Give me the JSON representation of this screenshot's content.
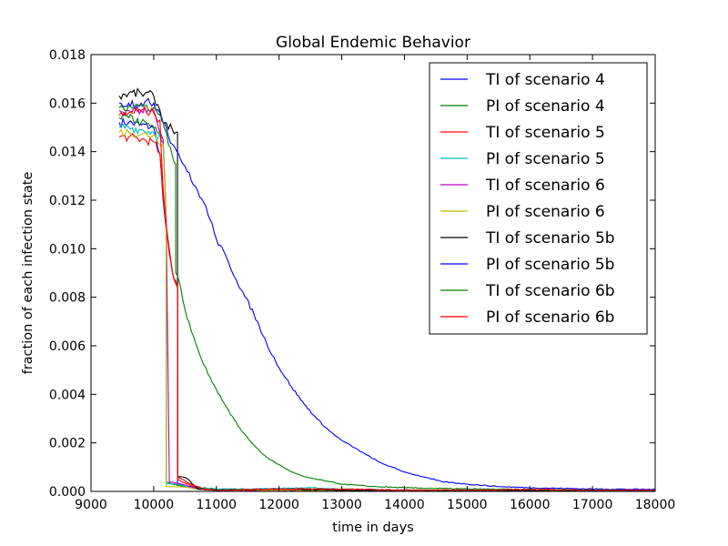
{
  "chart_data": {
    "type": "line",
    "title": "Global Endemic Behavior",
    "xlabel": "time in days",
    "ylabel": "fraction of each infection state",
    "xlim": [
      9000,
      18000
    ],
    "ylim": [
      0,
      0.018
    ],
    "x_ticks": [
      "9000",
      "10000",
      "11000",
      "12000",
      "13000",
      "14000",
      "15000",
      "16000",
      "17000",
      "18000"
    ],
    "y_ticks": [
      "0.000",
      "0.002",
      "0.004",
      "0.006",
      "0.008",
      "0.010",
      "0.012",
      "0.014",
      "0.016",
      "0.018"
    ],
    "grid": false,
    "legend_position": "top-right",
    "series": [
      {
        "name": "TI of scenario 4",
        "color": "#0000ff",
        "points": [
          [
            9450,
            0.0152
          ],
          [
            9600,
            0.0152
          ],
          [
            9800,
            0.0151
          ],
          [
            10000,
            0.015
          ],
          [
            10100,
            0.0139
          ],
          [
            10150,
            0.012
          ],
          [
            10200,
            0.0108
          ],
          [
            10250,
            0.0098
          ],
          [
            10300,
            0.009
          ],
          [
            10380,
            0.0084
          ],
          [
            10381,
            0.0003
          ],
          [
            10450,
            0.0002
          ],
          [
            10600,
            0.0002
          ],
          [
            11000,
            5e-05
          ],
          [
            18000,
            3e-05
          ]
        ]
      },
      {
        "name": "PI of scenario 4",
        "color": "#008000",
        "points": [
          [
            9450,
            0.0154
          ],
          [
            9600,
            0.0154
          ],
          [
            9800,
            0.0152
          ],
          [
            10000,
            0.015
          ],
          [
            10150,
            0.0144
          ],
          [
            10200,
            0.0112
          ],
          [
            10201,
            0.0004
          ],
          [
            10300,
            0.0003
          ],
          [
            10500,
            0.0002
          ],
          [
            11000,
            0.0001
          ],
          [
            12000,
            5e-05
          ],
          [
            18000,
            3e-05
          ]
        ]
      },
      {
        "name": "TI of scenario 5",
        "color": "#ff0000",
        "points": [
          [
            9450,
            0.0146
          ],
          [
            9600,
            0.0146
          ],
          [
            9800,
            0.0145
          ],
          [
            10000,
            0.0144
          ],
          [
            10100,
            0.0139
          ],
          [
            10150,
            0.0121
          ],
          [
            10200,
            0.0108
          ],
          [
            10250,
            0.0098
          ],
          [
            10300,
            0.009
          ],
          [
            10380,
            0.0084
          ],
          [
            10381,
            0.0005
          ],
          [
            10450,
            0.0004
          ],
          [
            10550,
            0.0003
          ],
          [
            10700,
            0.0001
          ],
          [
            11000,
            5e-05
          ],
          [
            18000,
            3e-05
          ]
        ]
      },
      {
        "name": "PI of scenario 5",
        "color": "#00bfbf",
        "points": [
          [
            9450,
            0.015
          ],
          [
            9600,
            0.015
          ],
          [
            9800,
            0.0149
          ],
          [
            10000,
            0.0148
          ],
          [
            10150,
            0.0145
          ],
          [
            10200,
            0.0112
          ],
          [
            10201,
            0.0003
          ],
          [
            10400,
            0.0003
          ],
          [
            10700,
            0.0001
          ],
          [
            11500,
            0.0001
          ],
          [
            12500,
            0.00015
          ],
          [
            13000,
            0.0001
          ],
          [
            14000,
            5e-05
          ],
          [
            18000,
            3e-05
          ]
        ]
      },
      {
        "name": "TI of scenario 6",
        "color": "#bf00bf",
        "points": [
          [
            9450,
            0.0157
          ],
          [
            9600,
            0.0157
          ],
          [
            9800,
            0.0157
          ],
          [
            10000,
            0.0157
          ],
          [
            10150,
            0.0145
          ],
          [
            10200,
            0.0113
          ],
          [
            10250,
            0.0004
          ],
          [
            10450,
            0.0003
          ],
          [
            10700,
            0.0001
          ],
          [
            11000,
            5e-05
          ],
          [
            18000,
            3e-05
          ]
        ]
      },
      {
        "name": "PI of scenario 6",
        "color": "#bfbf00",
        "points": [
          [
            9450,
            0.0148
          ],
          [
            9600,
            0.0148
          ],
          [
            9800,
            0.0147
          ],
          [
            10000,
            0.0147
          ],
          [
            10150,
            0.0143
          ],
          [
            10200,
            0.0112
          ],
          [
            10201,
            0.0002
          ],
          [
            10400,
            0.0002
          ],
          [
            10700,
            0.0001
          ],
          [
            11000,
            5e-05
          ],
          [
            18000,
            3e-05
          ]
        ]
      },
      {
        "name": "TI of scenario 5b",
        "color": "#000000",
        "points": [
          [
            9450,
            0.0163
          ],
          [
            9600,
            0.0164
          ],
          [
            9800,
            0.0164
          ],
          [
            10000,
            0.0163
          ],
          [
            10100,
            0.0157
          ],
          [
            10150,
            0.0152
          ],
          [
            10200,
            0.0152
          ],
          [
            10300,
            0.0149
          ],
          [
            10380,
            0.0148
          ],
          [
            10381,
            0.0006
          ],
          [
            10450,
            0.0006
          ],
          [
            10550,
            0.0005
          ],
          [
            10700,
            0.0001
          ],
          [
            11000,
            5e-05
          ],
          [
            12000,
            0.0001
          ],
          [
            13000,
            5e-05
          ],
          [
            18000,
            3e-05
          ]
        ]
      },
      {
        "name": "PI of scenario 5b",
        "color": "#0000ff",
        "points": [
          [
            9450,
            0.016
          ],
          [
            9600,
            0.016
          ],
          [
            9800,
            0.016
          ],
          [
            10000,
            0.016
          ],
          [
            10100,
            0.0156
          ],
          [
            10200,
            0.015
          ],
          [
            10300,
            0.0143
          ],
          [
            10400,
            0.0139
          ],
          [
            10500,
            0.0134
          ],
          [
            10600,
            0.0128
          ],
          [
            10700,
            0.0124
          ],
          [
            10800,
            0.0119
          ],
          [
            10900,
            0.0112
          ],
          [
            11000,
            0.0104
          ],
          [
            11200,
            0.0094
          ],
          [
            11400,
            0.0083
          ],
          [
            11600,
            0.0073
          ],
          [
            11800,
            0.0061
          ],
          [
            12000,
            0.0051
          ],
          [
            12200,
            0.0043
          ],
          [
            12400,
            0.0036
          ],
          [
            12600,
            0.003
          ],
          [
            12800,
            0.0025
          ],
          [
            13000,
            0.0021
          ],
          [
            13200,
            0.0018
          ],
          [
            13400,
            0.0015
          ],
          [
            13600,
            0.0012
          ],
          [
            13800,
            0.001
          ],
          [
            14000,
            0.0008
          ],
          [
            14300,
            0.0006
          ],
          [
            14600,
            0.0004
          ],
          [
            15000,
            0.0003
          ],
          [
            15500,
            0.0002
          ],
          [
            16000,
            0.00015
          ],
          [
            17000,
            0.0001
          ],
          [
            18000,
            8e-05
          ]
        ]
      },
      {
        "name": "TI of scenario 6b",
        "color": "#008000",
        "points": [
          [
            9450,
            0.0158
          ],
          [
            9600,
            0.0159
          ],
          [
            9800,
            0.0159
          ],
          [
            10000,
            0.0158
          ],
          [
            10100,
            0.0155
          ],
          [
            10200,
            0.0148
          ],
          [
            10300,
            0.0138
          ],
          [
            10350,
            0.0135
          ],
          [
            10351,
            0.009
          ],
          [
            10400,
            0.0087
          ],
          [
            10500,
            0.0075
          ],
          [
            10600,
            0.0066
          ],
          [
            10700,
            0.0059
          ],
          [
            10800,
            0.0052
          ],
          [
            10900,
            0.0047
          ],
          [
            11000,
            0.0042
          ],
          [
            11200,
            0.0033
          ],
          [
            11400,
            0.0025
          ],
          [
            11600,
            0.0019
          ],
          [
            11800,
            0.0014
          ],
          [
            12000,
            0.0011
          ],
          [
            12200,
            0.0008
          ],
          [
            12400,
            0.0006
          ],
          [
            12600,
            0.0005
          ],
          [
            12800,
            0.0004
          ],
          [
            13000,
            0.0003
          ],
          [
            13500,
            0.0002
          ],
          [
            14000,
            0.00015
          ],
          [
            15000,
            0.0001
          ],
          [
            16000,
            8e-05
          ],
          [
            18000,
            5e-05
          ]
        ]
      },
      {
        "name": "PI of scenario 6b",
        "color": "#ff0000",
        "points": [
          [
            9450,
            0.0155
          ],
          [
            9600,
            0.0156
          ],
          [
            9800,
            0.0157
          ],
          [
            10000,
            0.0156
          ],
          [
            10100,
            0.0153
          ],
          [
            10150,
            0.0125
          ],
          [
            10200,
            0.011
          ],
          [
            10300,
            0.009
          ],
          [
            10380,
            0.0084
          ],
          [
            10381,
            0.0006
          ],
          [
            10450,
            0.0005
          ],
          [
            10600,
            0.0003
          ],
          [
            10800,
            0.0001
          ],
          [
            11000,
            5e-05
          ],
          [
            12000,
            0.0001
          ],
          [
            13000,
            0.0001
          ],
          [
            14000,
            5e-05
          ],
          [
            15000,
            5e-05
          ],
          [
            16000,
            8e-05
          ],
          [
            17000,
            5e-05
          ],
          [
            18000,
            5e-05
          ]
        ]
      }
    ]
  }
}
